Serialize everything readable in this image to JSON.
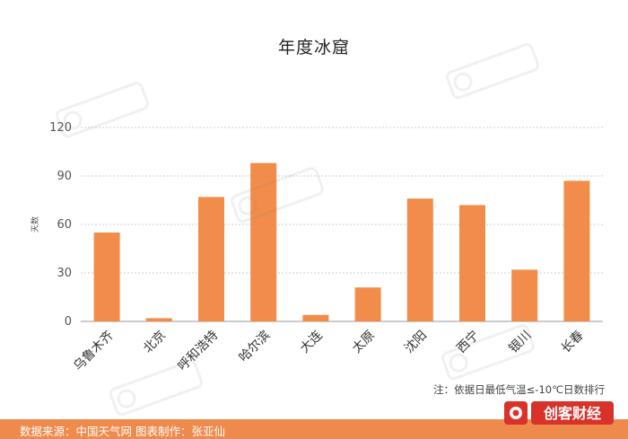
{
  "chart_data": {
    "type": "bar",
    "title": "年度冰窟",
    "ylabel": "天数",
    "xlabel": "",
    "categories": [
      "乌鲁木齐",
      "北京",
      "呼和浩特",
      "哈尔滨",
      "大连",
      "太原",
      "沈阳",
      "西宁",
      "银川",
      "长春"
    ],
    "values": [
      55,
      2,
      77,
      98,
      4,
      21,
      76,
      72,
      32,
      87
    ],
    "ylim": [
      0,
      120
    ],
    "yticks": [
      0,
      30,
      60,
      90,
      120
    ],
    "grid": true,
    "bar_color": "#f28c4a"
  },
  "note": "注：依据日最低气温≤-10℃日数排行",
  "footer": {
    "text": "数据来源：中国天气网   图表制作：张亚仙",
    "color": "#ee8a4c"
  },
  "brand": {
    "name": "创客财经",
    "color": "#d8322a"
  }
}
